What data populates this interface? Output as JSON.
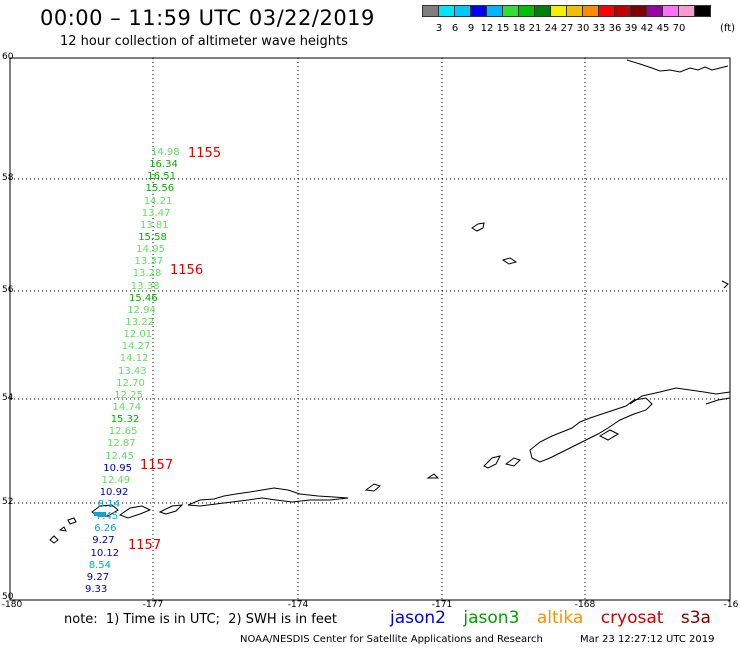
{
  "header": {
    "title": "00:00 – 11:59 UTC 03/22/2019",
    "subtitle": "12 hour collection of altimeter wave heights"
  },
  "legend": {
    "colors": [
      "#7f7f7f",
      "#00e5ff",
      "#00c8ff",
      "#0000ff",
      "#00b4ff",
      "#30e030",
      "#00c000",
      "#008000",
      "#f0f000",
      "#f0c000",
      "#ff8c00",
      "#ff0000",
      "#c00000",
      "#800000",
      "#9a00a0",
      "#ff70ff",
      "#ff9ad0",
      "#000000"
    ],
    "labels": [
      "3",
      "6",
      "9",
      "12",
      "15",
      "18",
      "21",
      "24",
      "27",
      "30",
      "33",
      "36",
      "39",
      "42",
      "45",
      "70"
    ],
    "unit": "(ft)"
  },
  "axes": {
    "lat_labels": [
      "60",
      "58",
      "56",
      "54",
      "52",
      "50"
    ],
    "lon_labels": [
      "-180",
      "-177",
      "-174",
      "-171",
      "-168",
      "-16"
    ]
  },
  "note": "note:  1) Time is in UTC;  2) SWH is in feet",
  "satellites": [
    {
      "name": "jason2",
      "color": "#0000e0"
    },
    {
      "name": "jason3",
      "color": "#00a000"
    },
    {
      "name": "altika",
      "color": "#ff9000"
    },
    {
      "name": "cryosat",
      "color": "#d00000"
    },
    {
      "name": "s3a",
      "color": "#800000"
    }
  ],
  "footer": {
    "left": "NOAA/NESDIS Center for Satellite Applications and Research",
    "right": "Mar 23 12:27:12 UTC 2019"
  },
  "wave_heights": [
    {
      "v": "14.98",
      "c": "#60e060"
    },
    {
      "v": "16.34",
      "c": "#00b000"
    },
    {
      "v": "16.51",
      "c": "#00b000"
    },
    {
      "v": "15.56",
      "c": "#00b000"
    },
    {
      "v": "14.21",
      "c": "#60e060"
    },
    {
      "v": "13.47",
      "c": "#60e060"
    },
    {
      "v": "13.81",
      "c": "#60e060"
    },
    {
      "v": "15.58",
      "c": "#00b000"
    },
    {
      "v": "14.95",
      "c": "#60e060"
    },
    {
      "v": "13.37",
      "c": "#60e060"
    },
    {
      "v": "13.28",
      "c": "#60e060"
    },
    {
      "v": "13.38",
      "c": "#60e060"
    },
    {
      "v": "15.46",
      "c": "#00b000"
    },
    {
      "v": "12.94",
      "c": "#60e060"
    },
    {
      "v": "13.22",
      "c": "#60e060"
    },
    {
      "v": "12.01",
      "c": "#60e060"
    },
    {
      "v": "14.27",
      "c": "#60e060"
    },
    {
      "v": "14.12",
      "c": "#60e060"
    },
    {
      "v": "13.43",
      "c": "#60e060"
    },
    {
      "v": "12.70",
      "c": "#60e060"
    },
    {
      "v": "12.25",
      "c": "#60e060"
    },
    {
      "v": "14.74",
      "c": "#60e060"
    },
    {
      "v": "15.32",
      "c": "#00b000"
    },
    {
      "v": "12.65",
      "c": "#60e060"
    },
    {
      "v": "12.87",
      "c": "#60e060"
    },
    {
      "v": "12.45",
      "c": "#60e060"
    },
    {
      "v": "10.95",
      "c": "#0000c0"
    },
    {
      "v": "12.49",
      "c": "#60e060"
    },
    {
      "v": "10.92",
      "c": "#0000c0"
    },
    {
      "v": "8.14",
      "c": "#00a8d8"
    },
    {
      "v": "7.45",
      "c": "#00a8d8"
    },
    {
      "v": "6.26",
      "c": "#00a8d8"
    },
    {
      "v": "9.27",
      "c": "#0000c0"
    },
    {
      "v": "10.12",
      "c": "#0000c0"
    },
    {
      "v": "8.54",
      "c": "#00a8d8"
    },
    {
      "v": "9.27",
      "c": "#0000c0"
    },
    {
      "v": "9.33",
      "c": "#0000c0"
    }
  ],
  "times": [
    "1155",
    "1156",
    "1157",
    "1157"
  ]
}
